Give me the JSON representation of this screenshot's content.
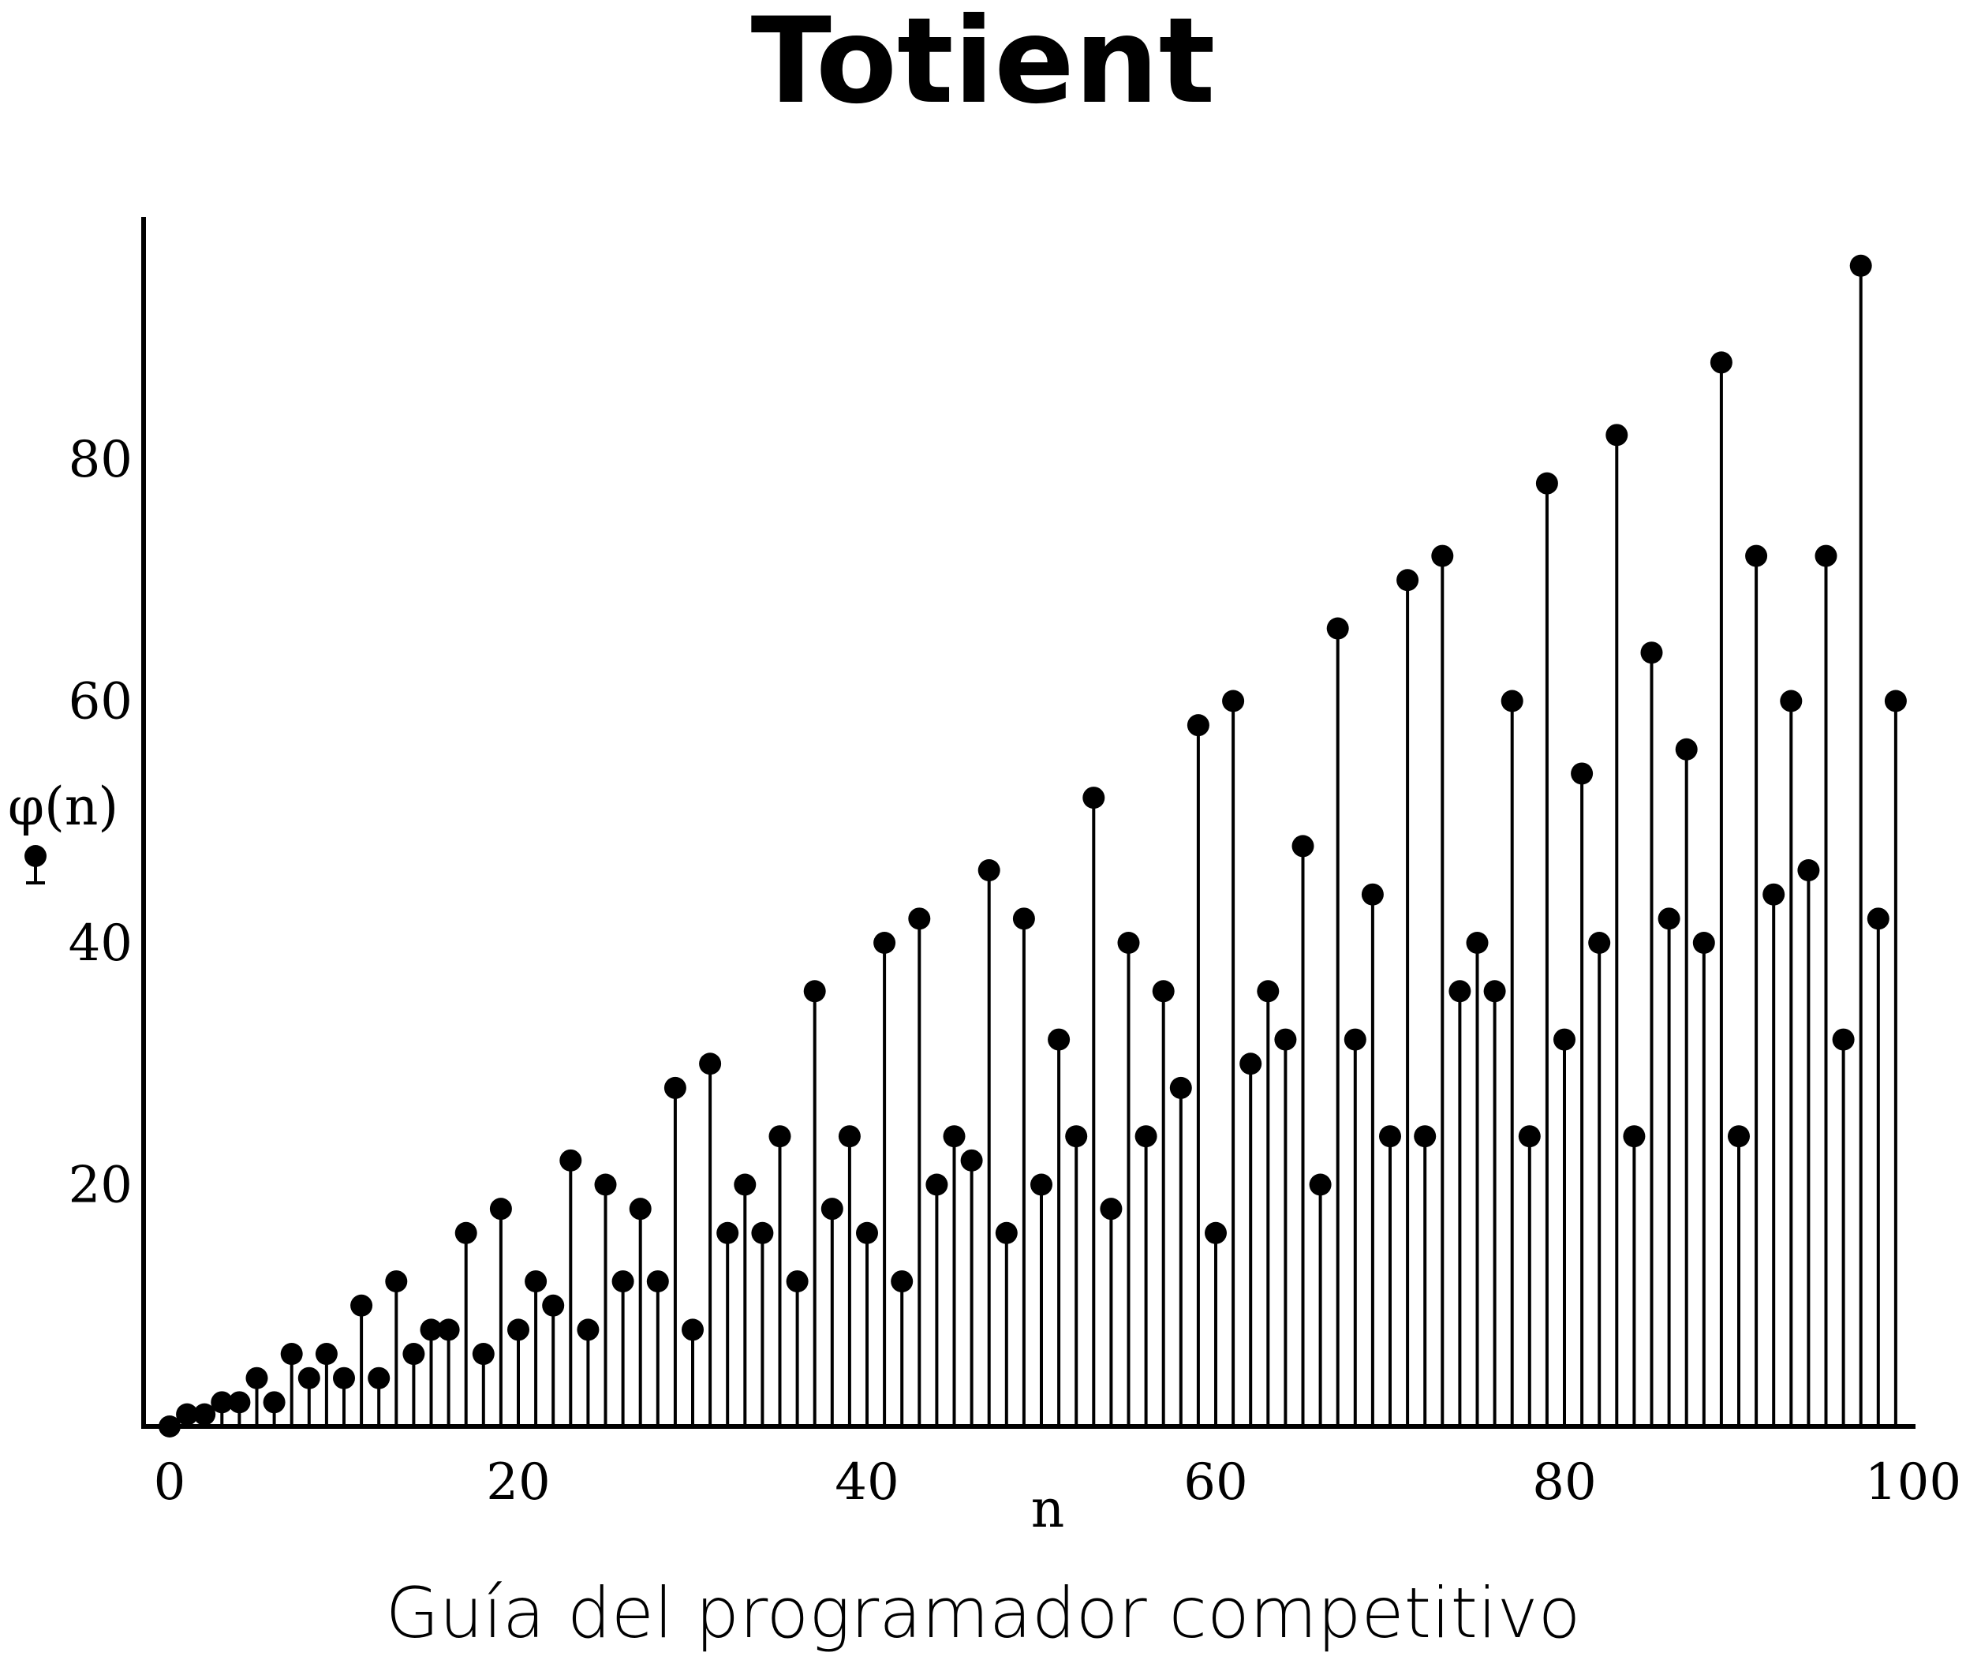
{
  "chart_data": {
    "type": "stem",
    "title": "Totient",
    "xlabel": "n",
    "ylabel": "φ(n)",
    "caption": "Guía del programador competitivo",
    "x_ticks": [
      0,
      20,
      40,
      60,
      80,
      100
    ],
    "y_ticks": [
      20,
      40,
      60,
      80
    ],
    "xlim": [
      -1.5,
      100
    ],
    "ylim": [
      0,
      100
    ],
    "grid": false,
    "marker_color": "#000000",
    "x": [
      0,
      1,
      2,
      3,
      4,
      5,
      6,
      7,
      8,
      9,
      10,
      11,
      12,
      13,
      14,
      15,
      16,
      17,
      18,
      19,
      20,
      21,
      22,
      23,
      24,
      25,
      26,
      27,
      28,
      29,
      30,
      31,
      32,
      33,
      34,
      35,
      36,
      37,
      38,
      39,
      40,
      41,
      42,
      43,
      44,
      45,
      46,
      47,
      48,
      49,
      50,
      51,
      52,
      53,
      54,
      55,
      56,
      57,
      58,
      59,
      60,
      61,
      62,
      63,
      64,
      65,
      66,
      67,
      68,
      69,
      70,
      71,
      72,
      73,
      74,
      75,
      76,
      77,
      78,
      79,
      80,
      81,
      82,
      83,
      84,
      85,
      86,
      87,
      88,
      89,
      90,
      91,
      92,
      93,
      94,
      95,
      96,
      97,
      98,
      99
    ],
    "y": [
      0,
      1,
      1,
      2,
      2,
      4,
      2,
      6,
      4,
      6,
      4,
      10,
      4,
      12,
      6,
      8,
      8,
      16,
      6,
      18,
      8,
      12,
      10,
      22,
      8,
      20,
      12,
      18,
      12,
      28,
      8,
      30,
      16,
      20,
      16,
      24,
      12,
      36,
      18,
      24,
      16,
      40,
      12,
      42,
      20,
      24,
      22,
      46,
      16,
      42,
      20,
      32,
      24,
      52,
      18,
      40,
      24,
      36,
      28,
      58,
      16,
      60,
      30,
      36,
      32,
      48,
      20,
      66,
      32,
      44,
      24,
      70,
      24,
      72,
      36,
      40,
      36,
      60,
      24,
      78,
      32,
      54,
      40,
      82,
      24,
      64,
      42,
      56,
      40,
      88,
      24,
      72,
      44,
      60,
      46,
      72,
      32,
      96,
      42,
      60
    ]
  }
}
